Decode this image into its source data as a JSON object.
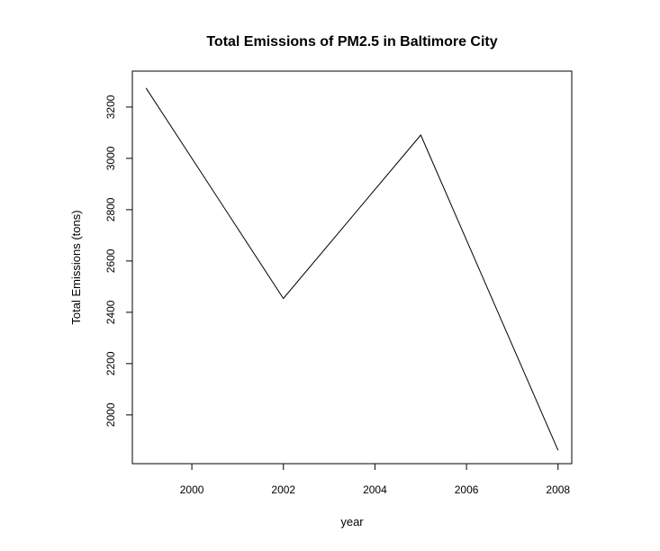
{
  "chart_data": {
    "type": "line",
    "title": "Total Emissions of PM2.5 in Baltimore City",
    "xlabel": "year",
    "ylabel": "Total Emissions (tons)",
    "x": [
      1999,
      2002,
      2005,
      2008
    ],
    "series": [
      {
        "values": [
          3274,
          2454,
          3091,
          1862
        ]
      }
    ],
    "xlim": [
      1998.7,
      2008.3
    ],
    "ylim": [
      1810,
      3340
    ],
    "xticks": [
      2000,
      2002,
      2004,
      2006,
      2008
    ],
    "xtick_labels": [
      "2000",
      "2002",
      "2004",
      "2006",
      "2008"
    ],
    "yticks": [
      2000,
      2200,
      2400,
      2600,
      2800,
      3000,
      3200
    ],
    "ytick_labels": [
      "2000",
      "2200",
      "2400",
      "2600",
      "2800",
      "3000",
      "3200"
    ],
    "grid": false,
    "line_color": "#000000"
  }
}
